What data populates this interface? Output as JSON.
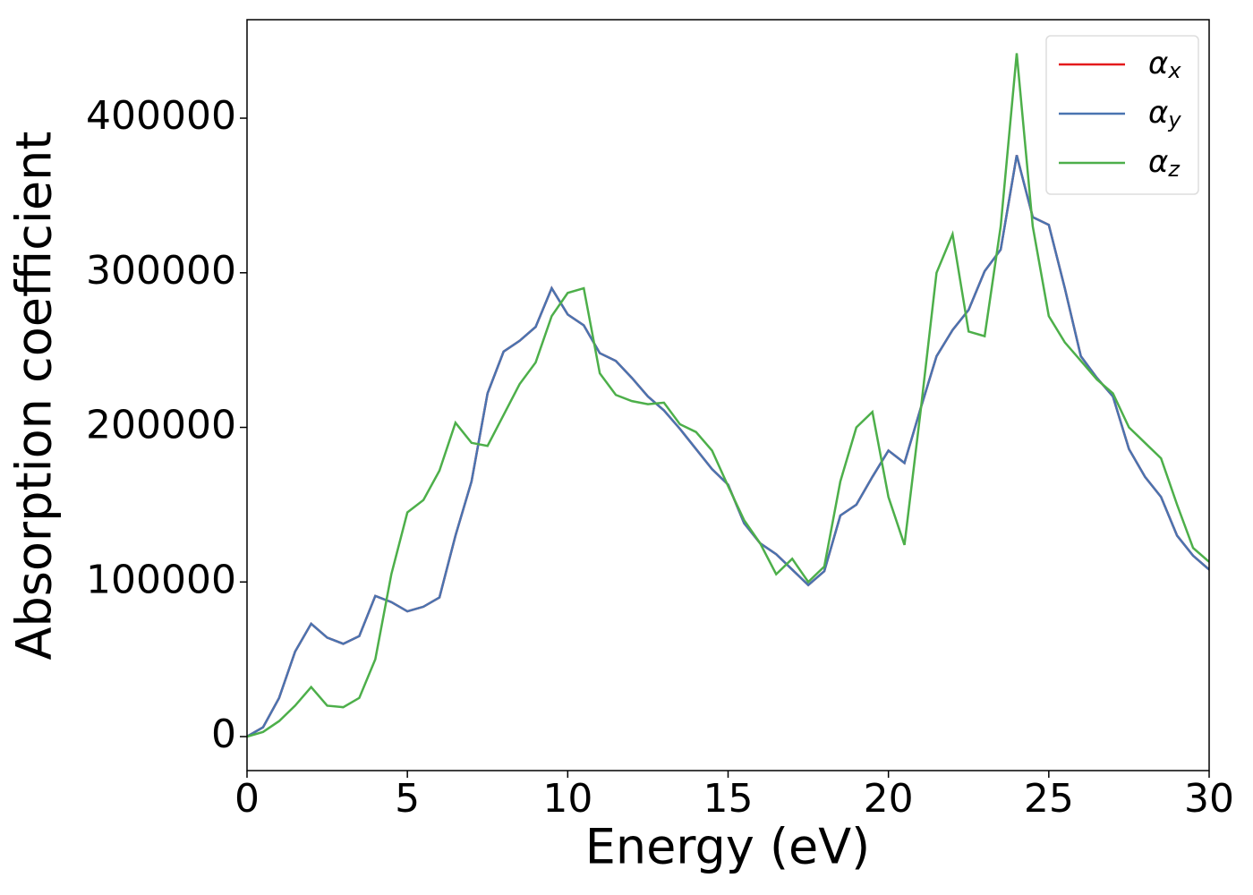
{
  "chart_data": {
    "type": "line",
    "xlabel": "Energy (eV)",
    "ylabel": "Absorption coefficient",
    "x": [
      0,
      0.5,
      1,
      1.5,
      2,
      2.5,
      3,
      3.5,
      4,
      4.5,
      5,
      5.5,
      6,
      6.5,
      7,
      7.5,
      8,
      8.5,
      9,
      9.5,
      10,
      10.5,
      11,
      11.5,
      12,
      12.5,
      13,
      13.5,
      14,
      14.5,
      15,
      15.5,
      16,
      16.5,
      17,
      17.5,
      18,
      18.5,
      19,
      19.5,
      20,
      20.5,
      21,
      21.5,
      22,
      22.5,
      23,
      23.5,
      24,
      24.5,
      25,
      25.5,
      26,
      26.5,
      27,
      27.5,
      28,
      28.5,
      29,
      29.5,
      30
    ],
    "series": [
      {
        "name": "αx",
        "color": "#e41a1c",
        "values": [
          0,
          6000,
          25000,
          55000,
          73000,
          64000,
          60000,
          65000,
          91000,
          87000,
          81000,
          84000,
          90000,
          130000,
          165000,
          222000,
          249000,
          256000,
          265000,
          290000,
          273000,
          266000,
          248000,
          243000,
          232000,
          220000,
          211000,
          199000,
          186000,
          173000,
          163000,
          138000,
          125000,
          118000,
          108000,
          98000,
          107000,
          143000,
          150000,
          168000,
          185000,
          177000,
          212000,
          246000,
          263000,
          276000,
          301000,
          315000,
          376000,
          336000,
          331000,
          290000,
          246000,
          232000,
          220000,
          186000,
          168000,
          155000,
          130000,
          117000,
          108000
        ]
      },
      {
        "name": "αy",
        "color": "#4a74b0",
        "values": [
          0,
          6000,
          25000,
          55000,
          73000,
          64000,
          60000,
          65000,
          91000,
          87000,
          81000,
          84000,
          90000,
          130000,
          165000,
          222000,
          249000,
          256000,
          265000,
          290000,
          273000,
          266000,
          248000,
          243000,
          232000,
          220000,
          211000,
          199000,
          186000,
          173000,
          163000,
          138000,
          125000,
          118000,
          108000,
          98000,
          107000,
          143000,
          150000,
          168000,
          185000,
          177000,
          212000,
          246000,
          263000,
          276000,
          301000,
          315000,
          376000,
          336000,
          331000,
          290000,
          246000,
          232000,
          220000,
          186000,
          168000,
          155000,
          130000,
          117000,
          108000
        ]
      },
      {
        "name": "αz",
        "color": "#4daf4a",
        "values": [
          0,
          3000,
          10000,
          20000,
          32000,
          20000,
          19000,
          25000,
          50000,
          105000,
          145000,
          153000,
          172000,
          203000,
          190000,
          188000,
          208000,
          228000,
          242000,
          272000,
          287000,
          290000,
          235000,
          221000,
          217000,
          215000,
          216000,
          202000,
          197000,
          185000,
          162000,
          140000,
          125000,
          105000,
          115000,
          100000,
          110000,
          165000,
          200000,
          210000,
          155000,
          124000,
          210000,
          300000,
          325000,
          262000,
          259000,
          330000,
          442000,
          330000,
          272000,
          255000,
          243000,
          231000,
          222000,
          200000,
          190000,
          180000,
          150000,
          122000,
          113000
        ]
      }
    ],
    "xlim": [
      0,
      30
    ],
    "xticks": [
      0,
      5,
      10,
      15,
      20,
      25,
      30
    ],
    "ylim": [
      -22000,
      463700
    ],
    "yticks": [
      0,
      100000,
      200000,
      300000,
      400000
    ],
    "grid": false,
    "legend": "upper right"
  }
}
